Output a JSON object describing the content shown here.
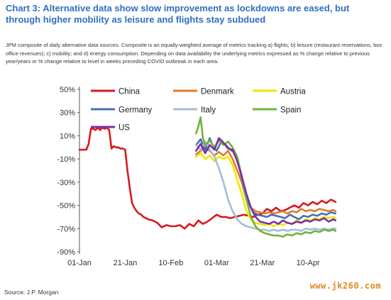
{
  "header": {
    "title": "Chart 3: Alternative data show slow improvement as lockdowns are eased, but through higher mobility as leisure and flights stay subdued",
    "subtitle": "JPM composite of daily alternative data sources. Composite is an equally-weighted average of metrics tracking a) flights; b) leisure (restaurant reservations, box office revenues); c) mobility; and d) energy consumption. Depending on data availability the underlying metrics expressed as % change relative to previous year/years or % change relative to level in weeks preceding COVID outbreak in each area."
  },
  "footer": {
    "source": "Source: J.P. Morgan",
    "watermark": "www.jk260.com"
  },
  "chart_data": {
    "type": "line",
    "xlabel": "",
    "ylabel": "",
    "x_ticks": [
      "01-Jan",
      "21-Jan",
      "10-Feb",
      "01-Mar",
      "21-Mar",
      "10-Apr"
    ],
    "x_tick_days": [
      0,
      20,
      40,
      60,
      80,
      100
    ],
    "y_ticks": [
      "50%",
      "30%",
      "10%",
      "-10%",
      "-30%",
      "-50%",
      "-70%",
      "-90%"
    ],
    "ylim": [
      -90,
      50
    ],
    "xlim": [
      0,
      113
    ],
    "legend": "inside top",
    "series": [
      {
        "name": "China",
        "color": "#d7191c",
        "points": [
          [
            0,
            -2
          ],
          [
            3,
            -2
          ],
          [
            4,
            3
          ],
          [
            5,
            16
          ],
          [
            6,
            16
          ],
          [
            7,
            15
          ],
          [
            8,
            17
          ],
          [
            9,
            15
          ],
          [
            10,
            17
          ],
          [
            11,
            16
          ],
          [
            12,
            17
          ],
          [
            13,
            15
          ],
          [
            14,
            -1
          ],
          [
            15,
            1
          ],
          [
            16,
            0
          ],
          [
            17,
            0
          ],
          [
            18,
            -1
          ],
          [
            19,
            -1
          ],
          [
            20,
            -2
          ],
          [
            21,
            -20
          ],
          [
            22,
            -35
          ],
          [
            23,
            -48
          ],
          [
            24,
            -52
          ],
          [
            25,
            -55
          ],
          [
            26,
            -57
          ],
          [
            27,
            -58
          ],
          [
            28,
            -60
          ],
          [
            30,
            -62
          ],
          [
            32,
            -63
          ],
          [
            34,
            -65
          ],
          [
            36,
            -69
          ],
          [
            38,
            -67
          ],
          [
            40,
            -68
          ],
          [
            42,
            -68
          ],
          [
            44,
            -67
          ],
          [
            46,
            -70
          ],
          [
            48,
            -66
          ],
          [
            50,
            -68
          ],
          [
            52,
            -63
          ],
          [
            54,
            -66
          ],
          [
            56,
            -64
          ],
          [
            58,
            -61
          ],
          [
            60,
            -58
          ],
          [
            62,
            -60
          ],
          [
            64,
            -60
          ],
          [
            66,
            -61
          ],
          [
            68,
            -60
          ],
          [
            70,
            -59
          ],
          [
            72,
            -58
          ],
          [
            74,
            -59
          ],
          [
            76,
            -60
          ],
          [
            78,
            -58
          ],
          [
            80,
            -57
          ],
          [
            82,
            -53
          ],
          [
            84,
            -55
          ],
          [
            86,
            -52
          ],
          [
            88,
            -55
          ],
          [
            90,
            -54
          ],
          [
            92,
            -52
          ],
          [
            94,
            -50
          ],
          [
            96,
            -52
          ],
          [
            98,
            -48
          ],
          [
            100,
            -50
          ],
          [
            102,
            -47
          ],
          [
            104,
            -49
          ],
          [
            106,
            -46
          ],
          [
            108,
            -48
          ],
          [
            110,
            -45
          ],
          [
            112,
            -47
          ]
        ]
      },
      {
        "name": "Denmark",
        "color": "#e07b2a",
        "points": [
          [
            51,
            -6
          ],
          [
            53,
            -3
          ],
          [
            55,
            0
          ],
          [
            57,
            -3
          ],
          [
            59,
            -7
          ],
          [
            61,
            -4
          ],
          [
            63,
            -7
          ],
          [
            65,
            -3
          ],
          [
            67,
            -10
          ],
          [
            69,
            -20
          ],
          [
            71,
            -30
          ],
          [
            73,
            -45
          ],
          [
            75,
            -52
          ],
          [
            77,
            -55
          ],
          [
            79,
            -56
          ],
          [
            81,
            -57
          ],
          [
            83,
            -56
          ],
          [
            85,
            -57
          ],
          [
            87,
            -56
          ],
          [
            89,
            -55
          ],
          [
            91,
            -57
          ],
          [
            93,
            -55
          ],
          [
            95,
            -56
          ],
          [
            97,
            -53
          ],
          [
            99,
            -55
          ],
          [
            101,
            -54
          ],
          [
            103,
            -55
          ],
          [
            105,
            -53
          ],
          [
            107,
            -54
          ],
          [
            109,
            -55
          ],
          [
            111,
            -54
          ],
          [
            112,
            -55
          ]
        ]
      },
      {
        "name": "Austria",
        "color": "#f2e600",
        "points": [
          [
            51,
            -8
          ],
          [
            53,
            -5
          ],
          [
            55,
            -10
          ],
          [
            57,
            -7
          ],
          [
            59,
            -12
          ],
          [
            61,
            -8
          ],
          [
            63,
            -10
          ],
          [
            65,
            -8
          ],
          [
            67,
            -15
          ],
          [
            69,
            -28
          ],
          [
            71,
            -40
          ],
          [
            73,
            -55
          ],
          [
            75,
            -62
          ],
          [
            77,
            -65
          ],
          [
            79,
            -66
          ],
          [
            81,
            -67
          ],
          [
            83,
            -66
          ],
          [
            85,
            -68
          ],
          [
            87,
            -66
          ],
          [
            89,
            -67
          ],
          [
            91,
            -65
          ],
          [
            93,
            -66
          ],
          [
            95,
            -63
          ],
          [
            97,
            -65
          ],
          [
            99,
            -62
          ],
          [
            101,
            -63
          ],
          [
            103,
            -61
          ],
          [
            105,
            -62
          ],
          [
            107,
            -60
          ],
          [
            109,
            -61
          ],
          [
            111,
            -60
          ],
          [
            112,
            -61
          ]
        ]
      },
      {
        "name": "Germany",
        "color": "#4a6fb5",
        "points": [
          [
            51,
            2
          ],
          [
            53,
            7
          ],
          [
            55,
            -2
          ],
          [
            57,
            8
          ],
          [
            58,
            3
          ],
          [
            60,
            -3
          ],
          [
            62,
            5
          ],
          [
            64,
            2
          ],
          [
            66,
            -2
          ],
          [
            68,
            -5
          ],
          [
            70,
            -18
          ],
          [
            72,
            -35
          ],
          [
            74,
            -48
          ],
          [
            76,
            -56
          ],
          [
            78,
            -58
          ],
          [
            80,
            -59
          ],
          [
            82,
            -60
          ],
          [
            84,
            -58
          ],
          [
            86,
            -59
          ],
          [
            88,
            -60
          ],
          [
            90,
            -61
          ],
          [
            92,
            -58
          ],
          [
            94,
            -60
          ],
          [
            96,
            -62
          ],
          [
            98,
            -59
          ],
          [
            100,
            -60
          ],
          [
            102,
            -58
          ],
          [
            104,
            -59
          ],
          [
            106,
            -57
          ],
          [
            108,
            -58
          ],
          [
            110,
            -56
          ],
          [
            112,
            -57
          ]
        ]
      },
      {
        "name": "Italy",
        "color": "#a4bcd8",
        "points": [
          [
            51,
            2
          ],
          [
            53,
            -2
          ],
          [
            55,
            5
          ],
          [
            57,
            -2
          ],
          [
            59,
            -8
          ],
          [
            61,
            -18
          ],
          [
            63,
            -30
          ],
          [
            65,
            -45
          ],
          [
            67,
            -55
          ],
          [
            69,
            -62
          ],
          [
            71,
            -66
          ],
          [
            73,
            -68
          ],
          [
            75,
            -69
          ],
          [
            77,
            -70
          ],
          [
            79,
            -71
          ],
          [
            81,
            -71
          ],
          [
            83,
            -72
          ],
          [
            85,
            -71
          ],
          [
            87,
            -72
          ],
          [
            89,
            -71
          ],
          [
            91,
            -72
          ],
          [
            93,
            -71
          ],
          [
            95,
            -71
          ],
          [
            97,
            -72
          ],
          [
            99,
            -70
          ],
          [
            101,
            -71
          ],
          [
            103,
            -70
          ],
          [
            105,
            -71
          ],
          [
            107,
            -70
          ],
          [
            109,
            -71
          ],
          [
            111,
            -70
          ],
          [
            112,
            -70
          ]
        ]
      },
      {
        "name": "Spain",
        "color": "#6fb33d",
        "points": [
          [
            51,
            12
          ],
          [
            52,
            18
          ],
          [
            53,
            26
          ],
          [
            54,
            8
          ],
          [
            55,
            2
          ],
          [
            57,
            6
          ],
          [
            59,
            0
          ],
          [
            61,
            6
          ],
          [
            63,
            2
          ],
          [
            65,
            5
          ],
          [
            67,
            0
          ],
          [
            69,
            -8
          ],
          [
            71,
            -25
          ],
          [
            73,
            -45
          ],
          [
            75,
            -60
          ],
          [
            77,
            -68
          ],
          [
            79,
            -72
          ],
          [
            81,
            -74
          ],
          [
            83,
            -75
          ],
          [
            85,
            -76
          ],
          [
            87,
            -76
          ],
          [
            89,
            -77
          ],
          [
            91,
            -75
          ],
          [
            93,
            -76
          ],
          [
            95,
            -74
          ],
          [
            97,
            -75
          ],
          [
            99,
            -73
          ],
          [
            101,
            -74
          ],
          [
            103,
            -72
          ],
          [
            105,
            -73
          ],
          [
            107,
            -71
          ],
          [
            109,
            -72
          ],
          [
            111,
            -71
          ],
          [
            112,
            -72
          ]
        ]
      },
      {
        "name": "US",
        "color": "#7a2fa3",
        "points": [
          [
            51,
            -3
          ],
          [
            53,
            3
          ],
          [
            55,
            -5
          ],
          [
            57,
            2
          ],
          [
            59,
            -2
          ],
          [
            61,
            8
          ],
          [
            63,
            4
          ],
          [
            65,
            -1
          ],
          [
            67,
            -2
          ],
          [
            69,
            -12
          ],
          [
            71,
            -25
          ],
          [
            73,
            -40
          ],
          [
            75,
            -52
          ],
          [
            77,
            -60
          ],
          [
            79,
            -64
          ],
          [
            81,
            -65
          ],
          [
            83,
            -66
          ],
          [
            85,
            -64
          ],
          [
            87,
            -66
          ],
          [
            89,
            -63
          ],
          [
            91,
            -65
          ],
          [
            93,
            -66
          ],
          [
            95,
            -64
          ],
          [
            97,
            -65
          ],
          [
            99,
            -63
          ],
          [
            101,
            -64
          ],
          [
            103,
            -62
          ],
          [
            105,
            -63
          ],
          [
            107,
            -61
          ],
          [
            109,
            -64
          ],
          [
            111,
            -62
          ],
          [
            112,
            -63
          ]
        ]
      }
    ]
  }
}
